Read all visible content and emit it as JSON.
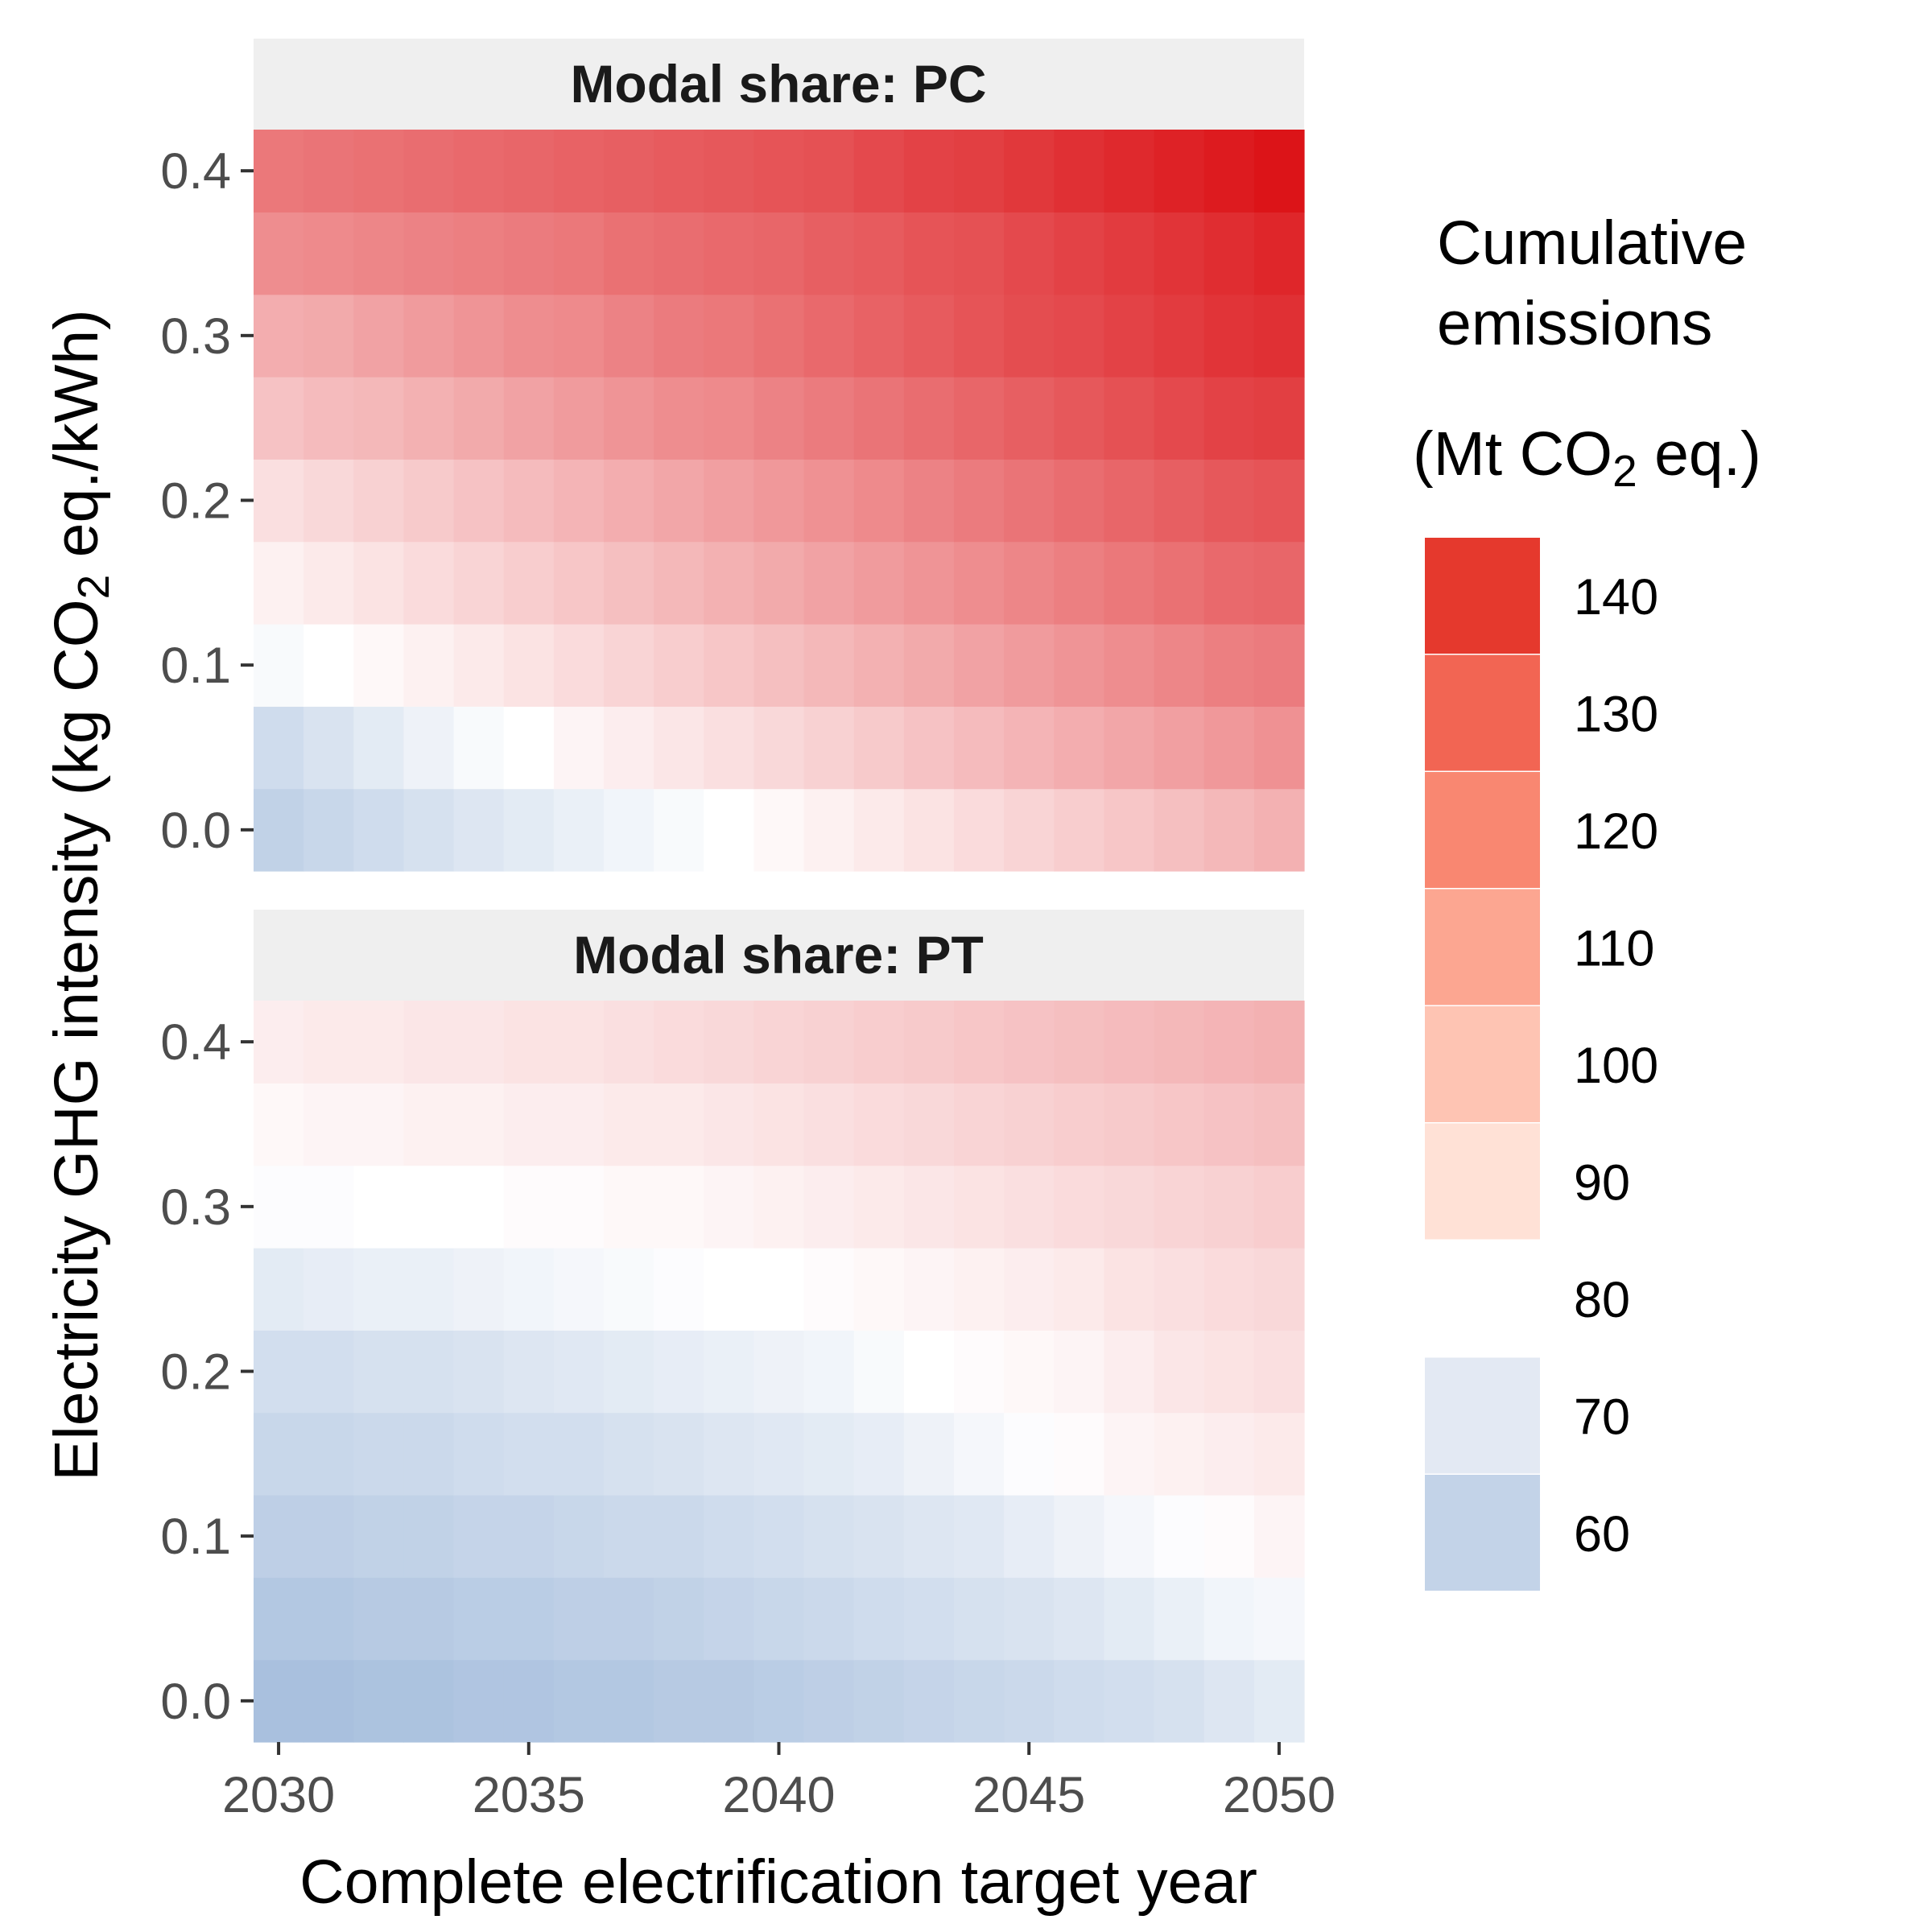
{
  "chart_data": {
    "type": "heatmap",
    "xlabel": "Complete electrification target year",
    "ylabel": {
      "before_sub": "Electricity GHG intensity (kg CO",
      "sub": "2",
      "after_sub": " eq./kWh)"
    },
    "x_ticks": [
      2030,
      2035,
      2040,
      2045,
      2050
    ],
    "y_ticks": [
      "0.0",
      "0.1",
      "0.2",
      "0.3",
      "0.4"
    ],
    "x": [
      2030,
      2031,
      2032,
      2033,
      2034,
      2035,
      2036,
      2037,
      2038,
      2039,
      2040,
      2041,
      2042,
      2043,
      2044,
      2045,
      2046,
      2047,
      2048,
      2049,
      2050
    ],
    "y": [
      0.0,
      0.05,
      0.1,
      0.15,
      0.2,
      0.25,
      0.3,
      0.35,
      0.4
    ],
    "xlim": [
      2029.5,
      2050.5
    ],
    "ylim": [
      -0.025,
      0.425
    ],
    "legend": {
      "title_line1": "Cumulative",
      "title_line2": "emissions",
      "unit_before": "(Mt CO",
      "unit_sub": "2",
      "unit_after": " eq.)",
      "placement": "right",
      "bins": [
        {
          "label": "140",
          "color": "#e5392d"
        },
        {
          "label": "130",
          "color": "#f26553"
        },
        {
          "label": "120",
          "color": "#f98771"
        },
        {
          "label": "110",
          "color": "#fca691"
        },
        {
          "label": "100",
          "color": "#fec4b3"
        },
        {
          "label": "90",
          "color": "#ffe1d6"
        },
        {
          "label": "80",
          "color": "#ffffff"
        },
        {
          "label": "70",
          "color": "#e3e9f3"
        },
        {
          "label": "60",
          "color": "#c3d3e8"
        }
      ]
    },
    "color_scale": {
      "low_color": "#a9c0de",
      "mid_color": "#ffffff",
      "high_color": "#dc1418",
      "low_value": 55,
      "mid_value": 80,
      "high_value": 146
    },
    "panels": [
      {
        "strip": "Modal share: PC",
        "rows": [
          [
            62,
            64,
            66,
            68,
            70,
            72,
            74,
            76,
            78,
            80,
            82,
            84,
            86,
            88,
            90,
            92,
            94,
            96,
            98,
            100,
            102
          ],
          [
            66,
            69,
            72,
            75,
            78,
            80,
            83,
            85,
            87,
            89,
            91,
            93,
            95,
            97,
            99,
            101,
            103,
            105,
            107,
            109,
            111
          ],
          [
            78,
            80,
            82,
            84,
            86,
            88,
            90,
            92,
            94,
            96,
            98,
            100,
            102,
            104,
            106,
            108,
            110,
            112,
            114,
            116,
            117
          ],
          [
            84,
            86,
            88,
            90,
            92,
            94,
            96,
            98,
            100,
            102,
            104,
            106,
            108,
            110,
            112,
            114,
            116,
            118,
            120,
            122,
            123
          ],
          [
            89,
            91,
            93,
            95,
            97,
            99,
            101,
            103,
            105,
            107,
            109,
            111,
            113,
            115,
            117,
            119,
            121,
            123,
            125,
            127,
            128
          ],
          [
            97,
            99,
            100,
            102,
            104,
            106,
            108,
            110,
            112,
            113,
            115,
            117,
            119,
            121,
            123,
            125,
            127,
            129,
            131,
            133,
            134
          ],
          [
            103,
            104,
            106,
            108,
            110,
            112,
            113,
            115,
            117,
            118,
            120,
            122,
            124,
            126,
            128,
            130,
            131,
            133,
            135,
            137,
            138
          ],
          [
            112,
            113,
            114,
            115,
            116,
            117,
            118,
            120,
            121,
            122,
            123,
            125,
            126,
            128,
            129,
            131,
            133,
            135,
            137,
            139,
            141
          ],
          [
            118,
            119,
            120,
            121,
            122,
            123,
            124,
            125,
            126,
            127,
            128,
            129,
            131,
            133,
            134,
            136,
            138,
            140,
            142,
            144,
            146
          ]
        ]
      },
      {
        "strip": "Modal share: PT",
        "rows": [
          [
            55,
            55,
            56,
            56,
            57,
            57,
            58,
            58,
            59,
            59,
            60,
            61,
            62,
            63,
            64,
            65,
            66,
            67,
            68,
            70,
            72
          ],
          [
            58,
            58,
            59,
            59,
            60,
            60,
            61,
            61,
            62,
            63,
            64,
            65,
            66,
            67,
            68,
            69,
            70,
            72,
            74,
            76,
            77
          ],
          [
            61,
            61,
            62,
            62,
            63,
            63,
            64,
            65,
            65,
            66,
            67,
            68,
            69,
            70,
            71,
            73,
            75,
            77,
            79,
            81,
            83
          ],
          [
            64,
            64,
            65,
            65,
            66,
            67,
            67,
            68,
            69,
            70,
            71,
            72,
            73,
            75,
            77,
            79,
            81,
            83,
            84,
            85,
            86
          ],
          [
            67,
            67,
            68,
            68,
            69,
            70,
            71,
            72,
            73,
            74,
            75,
            76,
            78,
            80,
            81,
            82,
            83,
            85,
            87,
            88,
            89
          ],
          [
            72,
            73,
            74,
            74,
            75,
            76,
            77,
            78,
            79,
            80,
            80,
            81,
            82,
            83,
            84,
            85,
            86,
            88,
            89,
            90,
            91
          ],
          [
            79,
            79,
            80,
            80,
            80,
            81,
            81,
            82,
            82,
            83,
            84,
            85,
            86,
            87,
            88,
            89,
            90,
            91,
            92,
            93,
            94
          ],
          [
            82,
            83,
            83,
            84,
            84,
            85,
            85,
            86,
            86,
            87,
            88,
            89,
            90,
            91,
            92,
            93,
            94,
            95,
            96,
            97,
            98
          ],
          [
            85,
            86,
            86,
            87,
            87,
            88,
            88,
            89,
            90,
            91,
            92,
            93,
            94,
            95,
            96,
            97,
            98,
            99,
            100,
            101,
            102
          ]
        ]
      }
    ]
  }
}
